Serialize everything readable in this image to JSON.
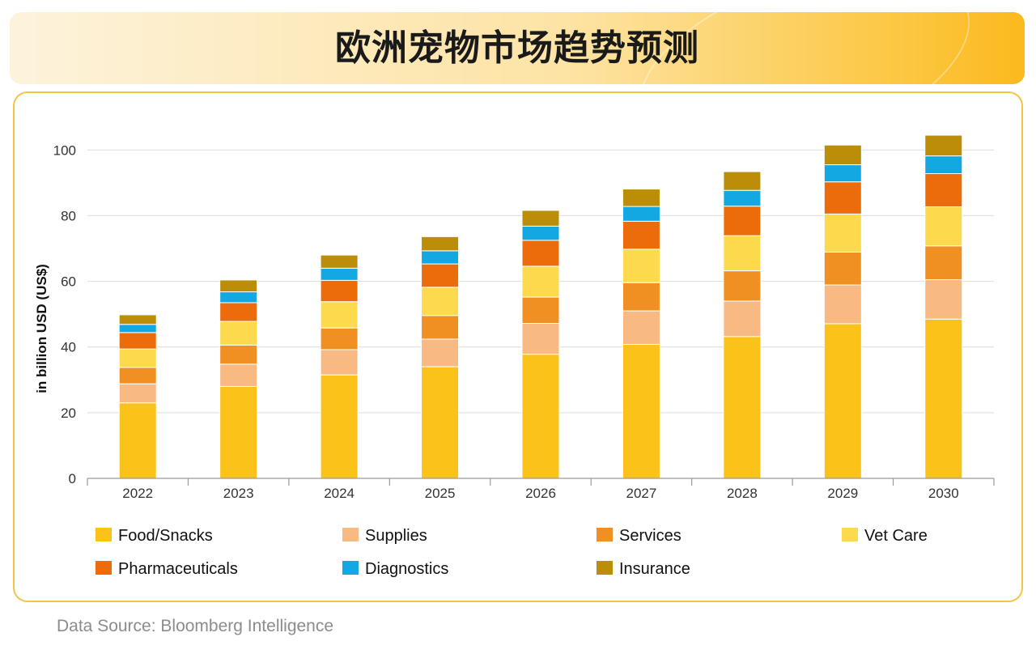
{
  "header": {
    "title": "欧洲宠物市场趋势预测"
  },
  "footer": {
    "source": "Data Source: Bloomberg Intelligence"
  },
  "chart_data": {
    "type": "bar",
    "stacked": true,
    "ylabel": "in billion USD (US$)",
    "xlabel": "",
    "ylim": [
      0,
      105
    ],
    "yticks": [
      0,
      20,
      40,
      60,
      80,
      100
    ],
    "grid": true,
    "legend_position": "bottom",
    "categories": [
      "2022",
      "2023",
      "2024",
      "2025",
      "2026",
      "2027",
      "2028",
      "2029",
      "2030"
    ],
    "series": [
      {
        "name": "Food/Snacks",
        "color": "#fbc219",
        "values": [
          23.0,
          28.0,
          31.5,
          34.0,
          37.8,
          40.8,
          43.2,
          47.1,
          48.5
        ]
      },
      {
        "name": "Supplies",
        "color": "#f9b982",
        "values": [
          5.8,
          6.8,
          7.7,
          8.4,
          9.4,
          10.2,
          10.8,
          11.8,
          12.0
        ]
      },
      {
        "name": "Services",
        "color": "#f19022",
        "values": [
          5.0,
          5.8,
          6.6,
          7.2,
          8.0,
          8.6,
          9.2,
          10.0,
          10.3
        ]
      },
      {
        "name": "Vet Care",
        "color": "#fcd94d",
        "values": [
          5.6,
          7.2,
          8.0,
          8.6,
          9.4,
          10.2,
          10.7,
          11.6,
          11.9
        ]
      },
      {
        "name": "Pharmaceuticals",
        "color": "#ec6c0c",
        "values": [
          5.0,
          5.7,
          6.5,
          7.1,
          7.9,
          8.5,
          9.0,
          9.8,
          10.1
        ]
      },
      {
        "name": "Diagnostics",
        "color": "#14a8e2",
        "values": [
          2.5,
          3.3,
          3.7,
          4.0,
          4.3,
          4.5,
          4.8,
          5.2,
          5.4
        ]
      },
      {
        "name": "Insurance",
        "color": "#bb8d08",
        "values": [
          2.9,
          3.6,
          4.0,
          4.3,
          4.8,
          5.3,
          5.7,
          6.0,
          6.3
        ]
      }
    ]
  }
}
